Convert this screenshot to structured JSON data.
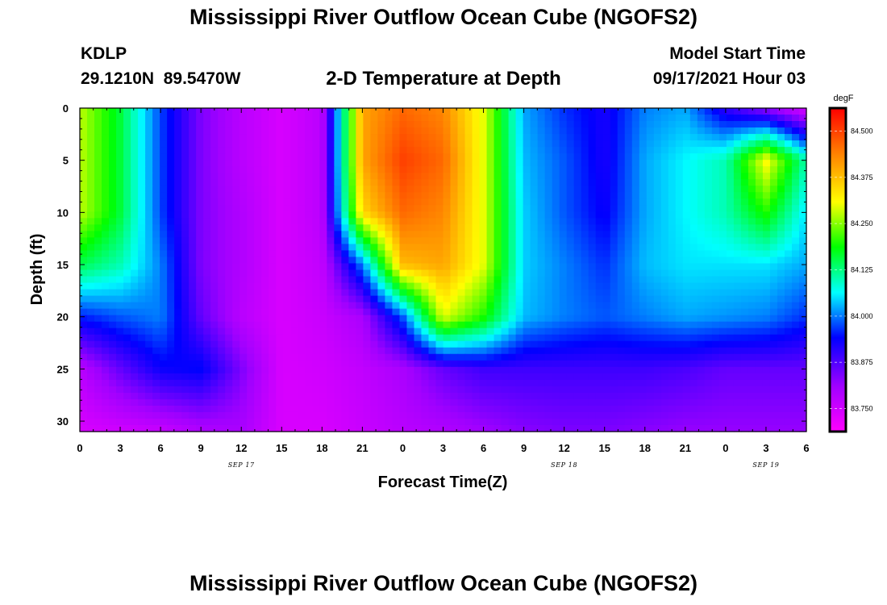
{
  "header": {
    "title": "Mississippi River Outflow Ocean Cube (NGOFS2)",
    "station_id": "KDLP",
    "station_coords": "29.1210N  89.5470W",
    "plot_title": "2-D Temperature at Depth",
    "model_start_label": "Model Start Time",
    "model_start_value": "09/17/2021 Hour 03"
  },
  "footer": {
    "title": "Mississippi River Outflow Ocean Cube (NGOFS2)"
  },
  "chart_data": {
    "type": "heatmap",
    "title": "2-D Temperature at Depth",
    "xlabel": "Forecast Time(Z)",
    "ylabel": "Depth (ft)",
    "x_hours": [
      0,
      54
    ],
    "x_tick_labels": [
      "0",
      "3",
      "6",
      "9",
      "12",
      "15",
      "18",
      "21",
      "0",
      "3",
      "6",
      "9",
      "12",
      "15",
      "18",
      "21",
      "0",
      "3",
      "6"
    ],
    "x_date_labels": [
      {
        "label": "SEP 17",
        "hour": 12
      },
      {
        "label": "SEP 18",
        "hour": 36
      },
      {
        "label": "SEP 19",
        "hour": 51
      }
    ],
    "ylim": [
      0,
      31
    ],
    "y_tick_labels": [
      "0",
      "5",
      "10",
      "15",
      "20",
      "25",
      "30"
    ],
    "y_tick_values": [
      0,
      5,
      10,
      15,
      20,
      25,
      30
    ],
    "colorbar": {
      "unit": "degF",
      "min": 83.688,
      "max": 84.562,
      "tick_values": [
        84.5,
        84.375,
        84.25,
        84.125,
        84.0,
        83.875,
        83.75
      ],
      "tick_labels": [
        "84.500",
        "84.375",
        "84.250",
        "84.125",
        "84.000",
        "83.875",
        "83.750"
      ],
      "colormap": [
        "#ff00ff",
        "#a000ff",
        "#0000ff",
        "#00ffff",
        "#00ff00",
        "#ffff00",
        "#ff8000",
        "#ff0000"
      ]
    },
    "temperature_ft_x_hour": {
      "hours": [
        0,
        3,
        6,
        9,
        12,
        15,
        18,
        21,
        24,
        27,
        30,
        33,
        36,
        39,
        42,
        45,
        48,
        51,
        54
      ],
      "depths": [
        0,
        5,
        10,
        15,
        20,
        25,
        31
      ],
      "values": [
        [
          84.28,
          84.16,
          83.97,
          83.84,
          83.78,
          83.74,
          83.78,
          84.4,
          84.46,
          84.43,
          84.3,
          84.02,
          83.96,
          83.92,
          84.0,
          84.02,
          83.9,
          83.82,
          83.74
        ],
        [
          84.28,
          84.16,
          83.97,
          83.84,
          83.78,
          83.74,
          83.78,
          84.4,
          84.5,
          84.46,
          84.3,
          84.03,
          83.98,
          83.92,
          84.02,
          84.06,
          84.1,
          84.32,
          84.1
        ],
        [
          84.28,
          84.16,
          83.97,
          83.84,
          83.79,
          83.74,
          83.78,
          84.35,
          84.46,
          84.43,
          84.3,
          84.04,
          83.98,
          83.93,
          84.02,
          84.06,
          84.1,
          84.2,
          84.05
        ],
        [
          84.15,
          84.1,
          84.0,
          83.84,
          83.79,
          83.74,
          83.77,
          84.0,
          84.38,
          84.4,
          84.3,
          84.04,
          84.0,
          83.96,
          84.03,
          84.05,
          84.05,
          84.05,
          84.02
        ],
        [
          83.95,
          83.98,
          84.0,
          83.86,
          83.78,
          83.74,
          83.76,
          83.8,
          83.98,
          84.3,
          84.2,
          84.03,
          84.0,
          83.98,
          84.0,
          84.02,
          84.01,
          84.0,
          83.96
        ],
        [
          83.78,
          83.86,
          83.93,
          83.94,
          83.84,
          83.74,
          83.75,
          83.77,
          83.8,
          83.86,
          83.89,
          83.89,
          83.89,
          83.89,
          83.89,
          83.88,
          83.86,
          83.86,
          83.86
        ],
        [
          83.74,
          83.75,
          83.76,
          83.79,
          83.8,
          83.74,
          83.74,
          83.76,
          83.78,
          83.79,
          83.81,
          83.83,
          83.84,
          83.84,
          83.83,
          83.82,
          83.82,
          83.82,
          83.82
        ]
      ]
    }
  }
}
